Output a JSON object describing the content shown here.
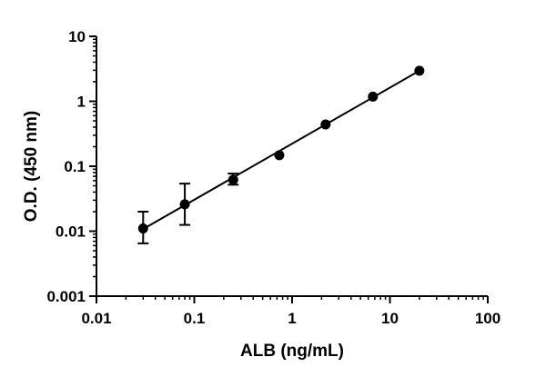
{
  "chart_data": {
    "type": "scatter",
    "xlabel": "ALB (ng/mL)",
    "ylabel": "O.D. (450 nm)",
    "x_scale": "log",
    "y_scale": "log",
    "xlim": [
      0.01,
      100
    ],
    "ylim": [
      0.001,
      10
    ],
    "x_ticks": [
      {
        "value": 0.01,
        "label": "0.01"
      },
      {
        "value": 0.1,
        "label": "0.1"
      },
      {
        "value": 1,
        "label": "1"
      },
      {
        "value": 10,
        "label": "10"
      },
      {
        "value": 100,
        "label": "100"
      }
    ],
    "y_ticks": [
      {
        "value": 0.001,
        "label": "0.001"
      },
      {
        "value": 0.01,
        "label": "0.01"
      },
      {
        "value": 0.1,
        "label": "0.1"
      },
      {
        "value": 1,
        "label": "1"
      },
      {
        "value": 10,
        "label": "10"
      }
    ],
    "grid": false,
    "color": "#000000",
    "series": [
      {
        "points": [
          {
            "x": 0.03,
            "y": 0.011,
            "err_low": 0.0065,
            "err_high": 0.02
          },
          {
            "x": 0.08,
            "y": 0.026,
            "err_low": 0.0125,
            "err_high": 0.054
          },
          {
            "x": 0.25,
            "y": 0.062,
            "err_low": 0.052,
            "err_high": 0.077
          },
          {
            "x": 0.74,
            "y": 0.148
          },
          {
            "x": 2.2,
            "y": 0.44
          },
          {
            "x": 6.7,
            "y": 1.18
          },
          {
            "x": 20,
            "y": 2.95
          }
        ],
        "fit": {
          "x_start": 0.03,
          "y_start": 0.0108,
          "x_end": 20,
          "y_end": 2.95
        }
      }
    ]
  }
}
